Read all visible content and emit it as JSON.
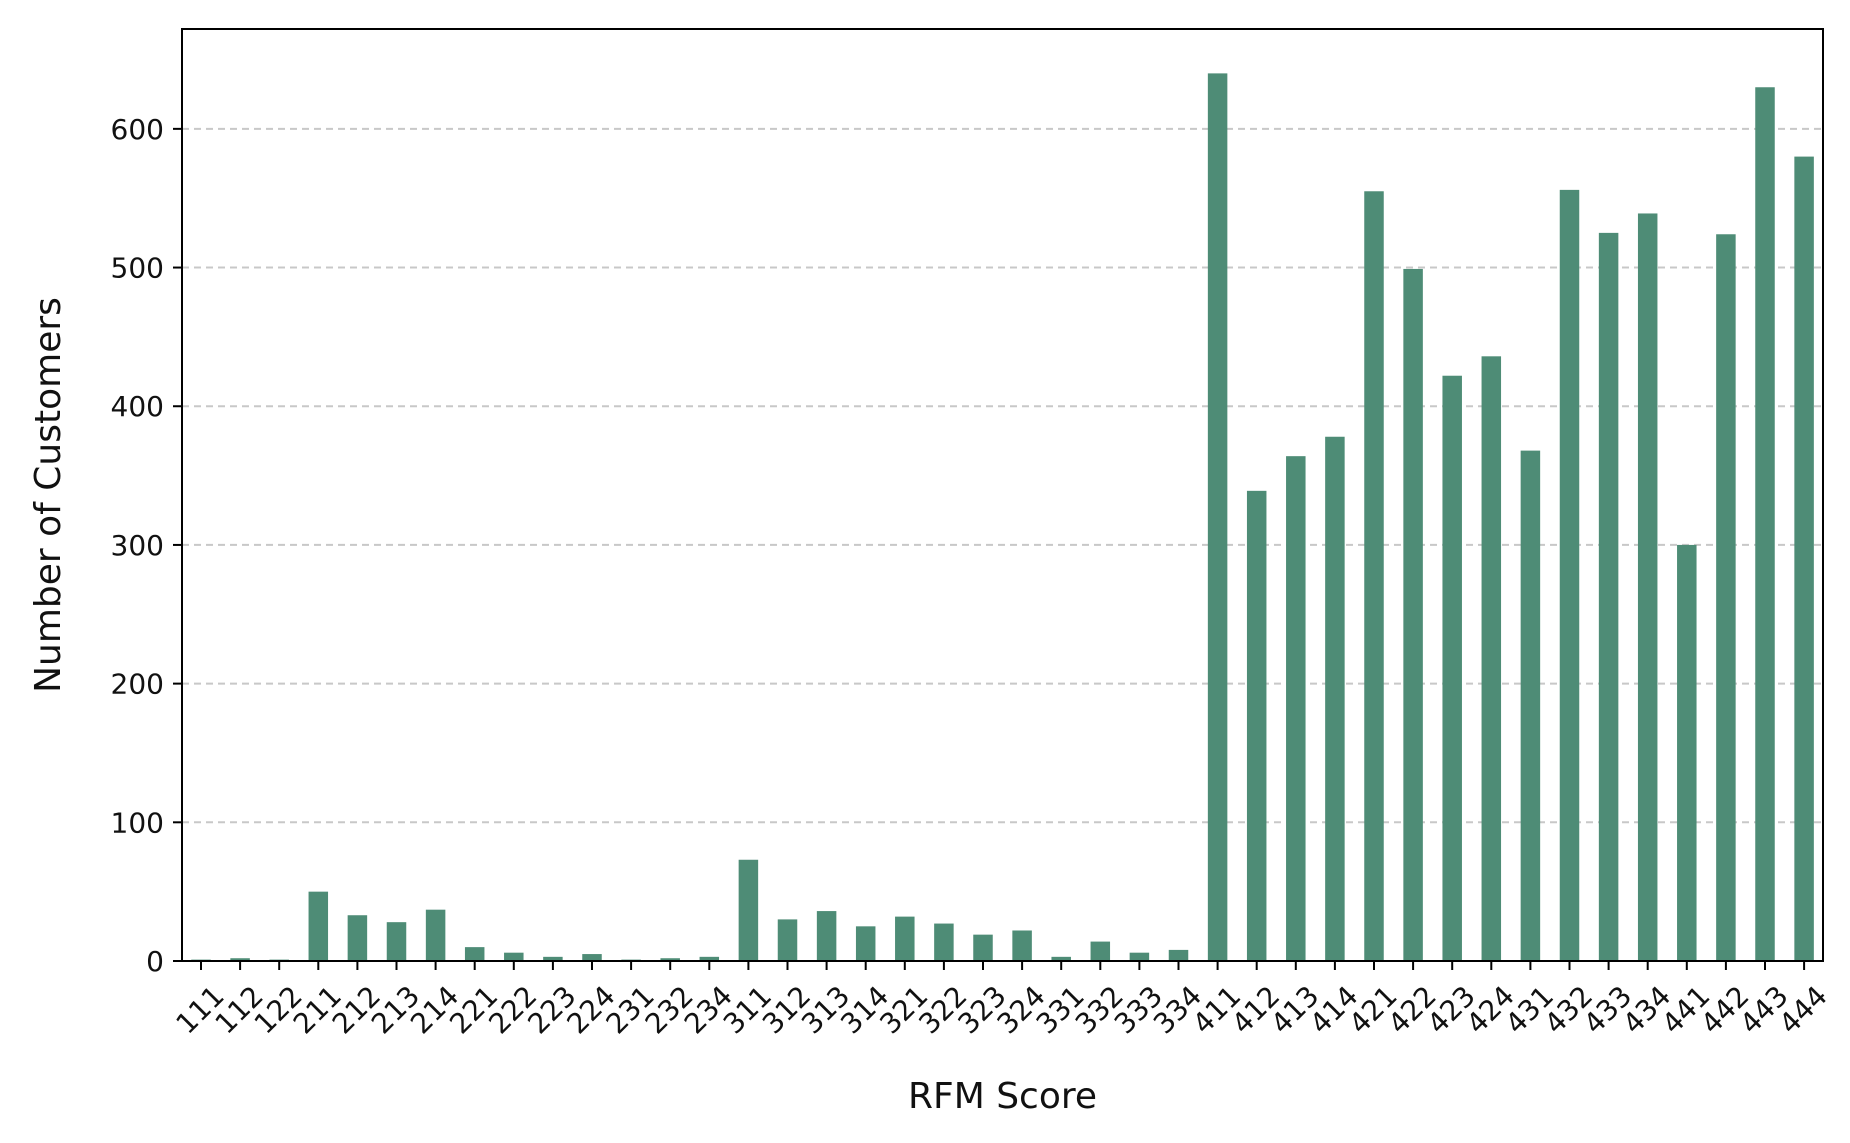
{
  "chart_data": {
    "type": "bar",
    "xlabel": "RFM Score",
    "ylabel": "Number of Customers",
    "categories": [
      "111",
      "112",
      "122",
      "211",
      "212",
      "213",
      "214",
      "221",
      "222",
      "223",
      "224",
      "231",
      "232",
      "234",
      "311",
      "312",
      "313",
      "314",
      "321",
      "322",
      "323",
      "324",
      "331",
      "332",
      "333",
      "334",
      "411",
      "412",
      "413",
      "414",
      "421",
      "422",
      "423",
      "424",
      "431",
      "432",
      "433",
      "434",
      "441",
      "442",
      "443",
      "444"
    ],
    "values": [
      1,
      2,
      1,
      50,
      33,
      28,
      37,
      10,
      6,
      3,
      5,
      1,
      2,
      3,
      73,
      30,
      36,
      25,
      32,
      27,
      19,
      22,
      3,
      14,
      6,
      8,
      640,
      339,
      364,
      378,
      555,
      499,
      422,
      436,
      368,
      556,
      525,
      539,
      300,
      524,
      630,
      580
    ],
    "yticks": [
      0,
      100,
      200,
      300,
      400,
      500,
      600
    ],
    "ylim": [
      0,
      672
    ],
    "grid": "y, dashed",
    "bar_color": "#4e8c76",
    "grid_color": "#c8c8c8"
  }
}
